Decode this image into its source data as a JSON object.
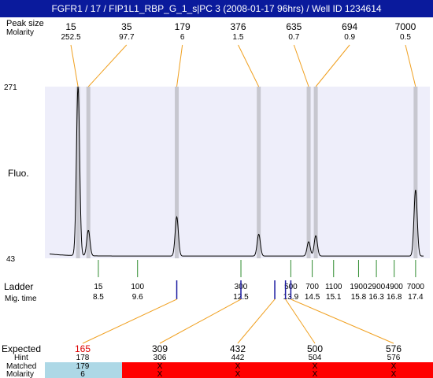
{
  "window": {
    "title": "FGFR1 / 17 / FIP1L1_RBP_G_1_s|PC 3 (2008-01-17 96hrs) / Well ID 1234614"
  },
  "labels": {
    "peak_row": "Peak size",
    "molarity_row": "Molarity",
    "y_axis": "Fluo.",
    "ladder": "Ladder",
    "mig_time": "Mig. time",
    "expected": "Expected",
    "hint": "Hint",
    "matched": "Matched",
    "molarity_bottom": "Molarity"
  },
  "colors": {
    "plot_bg": "#eeeefa",
    "band": "#c7c7cf",
    "trace": "#000000",
    "orange_line": "#f0a020",
    "ladder_line": "#2e8b2e",
    "marker_blue": "#1a1aa0",
    "matched_ok": "#add8e6",
    "matched_fail": "#ff0000",
    "expected_highlight": "#dd0000"
  },
  "chart_data": {
    "type": "line",
    "title": "FGFR1 / 17 / FIP1L1_RBP_G_1_s|PC 3 (2008-01-17 96hrs) / Well ID 1234614",
    "ylabel": "Fluo.",
    "ylim": [
      43,
      271
    ],
    "xlim": [
      7.0,
      17.8
    ],
    "peaks": [
      {
        "size": "15",
        "molarity": "252.5",
        "time": 7.93,
        "height": 271
      },
      {
        "size": "35",
        "molarity": "97.7",
        "time": 8.22,
        "height": 80
      },
      {
        "size": "179",
        "molarity": "6",
        "time": 10.7,
        "height": 98
      },
      {
        "size": "376",
        "molarity": "1.5",
        "time": 13.0,
        "height": 75
      },
      {
        "size": "635",
        "molarity": "0.7",
        "time": 14.4,
        "height": 65
      },
      {
        "size": "694",
        "molarity": "0.9",
        "time": 14.6,
        "height": 73
      },
      {
        "size": "7000",
        "molarity": "0.5",
        "time": 17.4,
        "height": 134
      }
    ],
    "ladder": [
      {
        "size": "15",
        "time": "8.5"
      },
      {
        "size": "100",
        "time": "9.6"
      },
      {
        "size": "300",
        "time": "12.5"
      },
      {
        "size": "500",
        "time": "13.9"
      },
      {
        "size": "700",
        "time": "14.5"
      },
      {
        "size": "1100",
        "time": "15.1"
      },
      {
        "size": "1900",
        "time": "15.8"
      },
      {
        "size": "2900",
        "time": "16.3"
      },
      {
        "size": "4900",
        "time": "16.8"
      },
      {
        "size": "7000",
        "time": "17.4"
      }
    ],
    "expected": [
      {
        "expected": "165",
        "hint": "178",
        "matched": "179",
        "molarity": "6",
        "ok": true,
        "highlight": true
      },
      {
        "expected": "309",
        "hint": "306",
        "matched": "X",
        "molarity": "X",
        "ok": false,
        "highlight": false
      },
      {
        "expected": "432",
        "hint": "442",
        "matched": "X",
        "molarity": "X",
        "ok": false,
        "highlight": false
      },
      {
        "expected": "500",
        "hint": "504",
        "matched": "X",
        "molarity": "X",
        "ok": false,
        "highlight": false
      },
      {
        "expected": "576",
        "hint": "576",
        "matched": "X",
        "molarity": "X",
        "ok": false,
        "highlight": false
      }
    ]
  }
}
